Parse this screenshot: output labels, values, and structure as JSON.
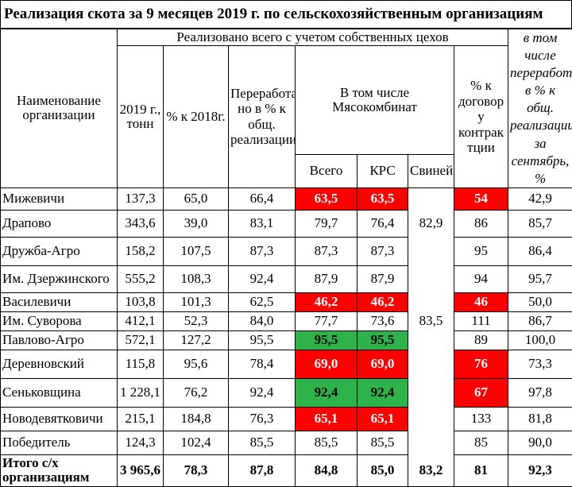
{
  "title": "Реализация скота за 9 месяцев 2019 г. по сельскохозяйственным организациям",
  "header": {
    "org_name": "Наименование организации",
    "realized_group": "Реализовано всего с учетом собственных цехов",
    "col_2019": "2019 г., тонн",
    "col_pct2018": "% к 2018г.",
    "col_processing": "Переработа но в % к общ. реализации",
    "in_number": "В том числе",
    "meatplant": "Мясокомбинат",
    "col_total": "Всего",
    "col_krs": "КРС",
    "col_pigs": "Свиней",
    "col_contract": "% к договор у контрак тции",
    "col_sept": "в том числе переработано в % к общ. реализации за сентябрь, %"
  },
  "rows": [
    {
      "name": "Мижевичи",
      "v2019": "137,3",
      "pct2018": "65,0",
      "proc": "66,4",
      "total": "63,5",
      "krs": "63,5",
      "pigs": "",
      "contract": "54",
      "sept": "42,9"
    },
    {
      "name": "Драпово",
      "v2019": "343,6",
      "pct2018": "39,0",
      "proc": "83,1",
      "total": "79,7",
      "krs": "76,4",
      "pigs": "82,9",
      "contract": "86",
      "sept": "85,7"
    },
    {
      "name": "Дружба-Агро",
      "v2019": "158,2",
      "pct2018": "107,5",
      "proc": "87,3",
      "total": "87,3",
      "krs": "87,3",
      "pigs": "",
      "contract": "95",
      "sept": "86,4"
    },
    {
      "name": "Им. Дзержинского",
      "v2019": "555,2",
      "pct2018": "108,3",
      "proc": "92,4",
      "total": "87,9",
      "krs": "87,9",
      "pigs": "",
      "contract": "94",
      "sept": "95,7"
    },
    {
      "name": "Василевичи",
      "v2019": "103,8",
      "pct2018": "101,3",
      "proc": "62,5",
      "total": "46,2",
      "krs": "46,2",
      "pigs": "",
      "contract": "46",
      "sept": "50,0"
    },
    {
      "name": "Им. Суворова",
      "v2019": "412,1",
      "pct2018": "52,3",
      "proc": "84,0",
      "total": "77,7",
      "krs": "73,6",
      "pigs": "83,5",
      "contract": "111",
      "sept": "86,7"
    },
    {
      "name": "Павлово-Агро",
      "v2019": "572,1",
      "pct2018": "127,2",
      "proc": "95,5",
      "total": "95,5",
      "krs": "95,5",
      "pigs": "",
      "contract": "89",
      "sept": "100,0"
    },
    {
      "name": "Деревновский",
      "v2019": "115,8",
      "pct2018": "95,6",
      "proc": "78,4",
      "total": "69,0",
      "krs": "69,0",
      "pigs": "",
      "contract": "76",
      "sept": "73,3"
    },
    {
      "name": "Сеньковщина",
      "v2019": "1 228,1",
      "pct2018": "76,2",
      "proc": "92,4",
      "total": "92,4",
      "krs": "92,4",
      "pigs": "",
      "contract": "67",
      "sept": "97,8"
    },
    {
      "name": "Новодевятковичи",
      "v2019": "215,1",
      "pct2018": "184,8",
      "proc": "76,3",
      "total": "65,1",
      "krs": "65,1",
      "pigs": "",
      "contract": "133",
      "sept": "81,8"
    },
    {
      "name": "Победитель",
      "v2019": "124,3",
      "pct2018": "102,4",
      "proc": "85,5",
      "total": "85,5",
      "krs": "85,5",
      "pigs": "",
      "contract": "85",
      "sept": "90,0"
    }
  ],
  "total_row": {
    "name": "Итого с/х организациям",
    "v2019": "3 965,6",
    "pct2018": "78,3",
    "proc": "87,8",
    "total": "84,8",
    "krs": "85,0",
    "pigs": "83,2",
    "contract": "81",
    "sept": "92,3"
  },
  "colors": {
    "red": "#ff0000",
    "green": "#2db34a"
  }
}
